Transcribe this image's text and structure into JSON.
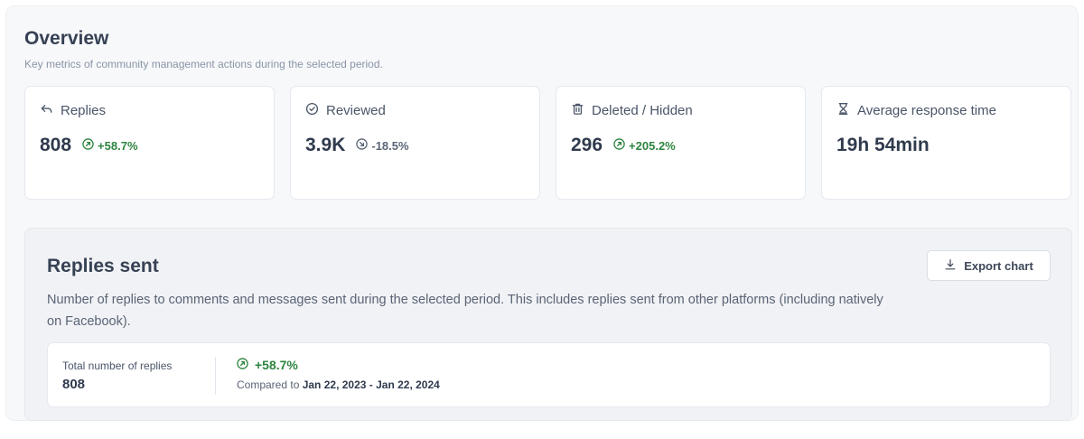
{
  "overview": {
    "title": "Overview",
    "subtitle": "Key metrics of community management actions during the selected period."
  },
  "metrics": [
    {
      "label": "Replies",
      "icon": "reply-icon",
      "value": "808",
      "delta": "+58.7%",
      "trend": "up"
    },
    {
      "label": "Reviewed",
      "icon": "check-circle-icon",
      "value": "3.9K",
      "delta": "-18.5%",
      "trend": "down"
    },
    {
      "label": "Deleted / Hidden",
      "icon": "trash-icon",
      "value": "296",
      "delta": "+205.2%",
      "trend": "up"
    },
    {
      "label": "Average response time",
      "icon": "hourglass-icon",
      "value": "19h 54min"
    }
  ],
  "replies_sent": {
    "title": "Replies sent",
    "description": "Number of replies to comments and messages sent during the selected period. This includes replies sent from other platforms (including natively on Facebook).",
    "export_label": "Export chart",
    "total_label": "Total number of replies",
    "total_value": "808",
    "total_delta": "+58.7%",
    "compare_prefix": "Compared to",
    "compare_range": "Jan 22, 2023 - Jan 22, 2024"
  },
  "colors": {
    "positive": "#2e8540",
    "neutral": "#5b6577",
    "panel_bg": "#f7f8fa"
  }
}
